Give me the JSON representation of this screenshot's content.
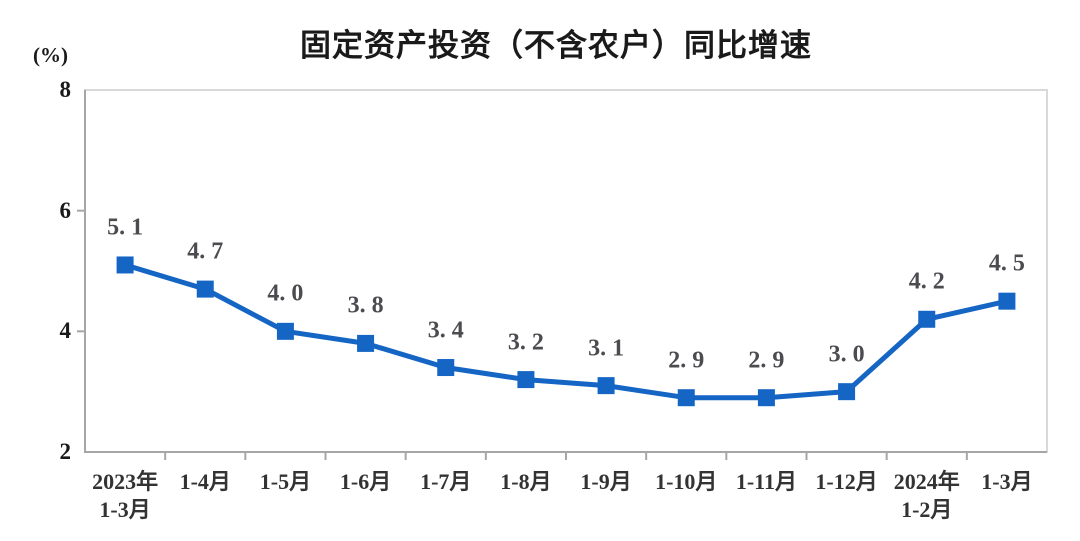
{
  "title": "固定资产投资（不含农户）同比增速",
  "unit_label": "(%)",
  "colors": {
    "line": "#1565c5",
    "axis": "#a6a6a6",
    "border": "#d9d9d9"
  },
  "chart_data": {
    "type": "line",
    "title": "固定资产投资（不含农户）同比增速",
    "xlabel": "",
    "ylabel": "(%)",
    "categories": [
      "2023年\n1-3月",
      "1-4月",
      "1-5月",
      "1-6月",
      "1-7月",
      "1-8月",
      "1-9月",
      "1-10月",
      "1-11月",
      "1-12月",
      "2024年\n1-2月",
      "1-3月"
    ],
    "values": [
      5.1,
      4.7,
      4.0,
      3.8,
      3.4,
      3.2,
      3.1,
      2.9,
      2.9,
      3.0,
      4.2,
      4.5
    ],
    "data_labels": [
      "5. 1",
      "4. 7",
      "4. 0",
      "3. 8",
      "3. 4",
      "3. 2",
      "3. 1",
      "2. 9",
      "2. 9",
      "3. 0",
      "4. 2",
      "4. 5"
    ],
    "ylim": [
      2,
      8
    ],
    "yticks": [
      2,
      4,
      6,
      8
    ],
    "grid": false,
    "legend": "none",
    "marker": "square",
    "line_color": "#1565c5"
  }
}
